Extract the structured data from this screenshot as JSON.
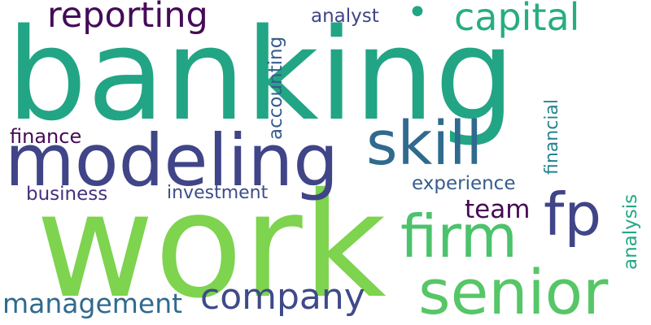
{
  "words": {
    "banking": "banking",
    "work": "work",
    "modeling": "modeling",
    "reporting": "reporting",
    "capital": "capital",
    "analyst": "analyst",
    "dot": "•",
    "skill": "skill",
    "finance": "finance",
    "business": "business",
    "investment": "investment",
    "experience": "experience",
    "team": "team",
    "fp": "fp",
    "firm": "firm",
    "senior": "senior",
    "company": "company",
    "management": "management",
    "accounting": "accounting",
    "financial": "financial",
    "analysis": "analysis"
  },
  "colors": {
    "background": "#ffffff",
    "teal": "#22a584",
    "green": "#7ed34f",
    "indigo": "#404588",
    "purple": "#450b57",
    "blue": "#306a8e"
  }
}
